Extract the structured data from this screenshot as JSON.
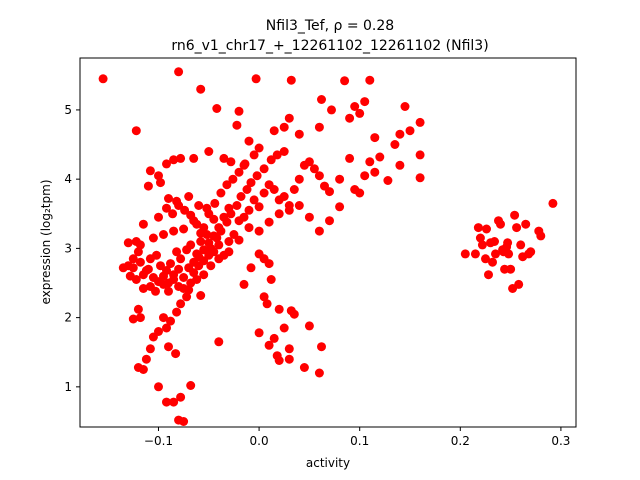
{
  "chart_data": {
    "type": "scatter",
    "title": "Nfil3_Tef, ρ = 0.28",
    "subtitle": "rn6_v1_chr17_+_12261102_12261102 (Nfil3)",
    "xlabel": "activity",
    "ylabel": "expression (log₂tpm)",
    "xlim": [
      -0.178,
      0.315
    ],
    "ylim": [
      0.42,
      5.75
    ],
    "xticks": [
      -0.1,
      0.0,
      0.1,
      0.2,
      0.3
    ],
    "xtick_labels": [
      "−0.1",
      "0.0",
      "0.1",
      "0.2",
      "0.3"
    ],
    "yticks": [
      1,
      2,
      3,
      4,
      5
    ],
    "ytick_labels": [
      "1",
      "2",
      "3",
      "4",
      "5"
    ],
    "grid": false,
    "marker_color": "#ff0000",
    "points": [
      [
        -0.155,
        5.45
      ],
      [
        -0.122,
        4.7
      ],
      [
        -0.08,
        5.55
      ],
      [
        -0.058,
        5.3
      ],
      [
        -0.042,
        5.02
      ],
      [
        -0.02,
        4.98
      ],
      [
        -0.022,
        4.78
      ],
      [
        -0.003,
        5.45
      ],
      [
        0.032,
        5.43
      ],
      [
        0.062,
        5.15
      ],
      [
        0.085,
        5.42
      ],
      [
        0.11,
        5.43
      ],
      [
        0.095,
        5.05
      ],
      [
        0.072,
        5.0
      ],
      [
        0.145,
        5.05
      ],
      [
        0.16,
        4.82
      ],
      [
        0.105,
        5.12
      ],
      [
        0.1,
        4.95
      ],
      [
        0.115,
        4.6
      ],
      [
        0.15,
        4.7
      ],
      [
        0.14,
        4.65
      ],
      [
        0.135,
        4.5
      ],
      [
        0.09,
        4.88
      ],
      [
        0.06,
        4.75
      ],
      [
        0.04,
        4.65
      ],
      [
        0.025,
        4.75
      ],
      [
        0.03,
        4.88
      ],
      [
        0.015,
        4.7
      ],
      [
        -0.01,
        4.55
      ],
      [
        0.0,
        4.45
      ],
      [
        -0.005,
        4.35
      ],
      [
        -0.015,
        4.2
      ],
      [
        -0.028,
        4.25
      ],
      [
        -0.035,
        4.3
      ],
      [
        -0.05,
        4.4
      ],
      [
        -0.065,
        4.3
      ],
      [
        -0.078,
        4.3
      ],
      [
        -0.085,
        4.28
      ],
      [
        -0.092,
        4.22
      ],
      [
        -0.1,
        4.05
      ],
      [
        -0.108,
        4.12
      ],
      [
        -0.11,
        3.9
      ],
      [
        -0.098,
        3.95
      ],
      [
        -0.09,
        3.72
      ],
      [
        -0.082,
        3.68
      ],
      [
        -0.07,
        3.75
      ],
      [
        -0.06,
        3.62
      ],
      [
        -0.052,
        3.58
      ],
      [
        -0.045,
        3.42
      ],
      [
        -0.055,
        3.3
      ],
      [
        -0.065,
        3.4
      ],
      [
        -0.075,
        3.28
      ],
      [
        -0.085,
        3.25
      ],
      [
        -0.095,
        3.2
      ],
      [
        -0.105,
        3.15
      ],
      [
        -0.115,
        3.35
      ],
      [
        -0.118,
        3.05
      ],
      [
        -0.12,
        2.95
      ],
      [
        -0.125,
        2.85
      ],
      [
        -0.13,
        2.75
      ],
      [
        -0.128,
        2.6
      ],
      [
        -0.122,
        2.55
      ],
      [
        -0.115,
        2.62
      ],
      [
        -0.11,
        2.7
      ],
      [
        -0.105,
        2.58
      ],
      [
        -0.1,
        2.52
      ],
      [
        -0.095,
        2.48
      ],
      [
        -0.09,
        2.5
      ],
      [
        -0.085,
        2.55
      ],
      [
        -0.08,
        2.45
      ],
      [
        -0.075,
        2.42
      ],
      [
        -0.07,
        2.4
      ],
      [
        -0.065,
        2.65
      ],
      [
        -0.06,
        2.75
      ],
      [
        -0.055,
        2.82
      ],
      [
        -0.05,
        2.9
      ],
      [
        -0.045,
        2.95
      ],
      [
        -0.04,
        3.05
      ],
      [
        -0.035,
        2.9
      ],
      [
        -0.03,
        3.1
      ],
      [
        -0.025,
        3.2
      ],
      [
        -0.02,
        3.4
      ],
      [
        -0.015,
        3.45
      ],
      [
        -0.01,
        3.55
      ],
      [
        -0.005,
        3.7
      ],
      [
        0.0,
        3.6
      ],
      [
        0.005,
        3.8
      ],
      [
        0.01,
        3.92
      ],
      [
        0.015,
        3.85
      ],
      [
        0.02,
        3.7
      ],
      [
        0.025,
        3.75
      ],
      [
        0.03,
        3.62
      ],
      [
        0.035,
        3.85
      ],
      [
        0.04,
        4.0
      ],
      [
        0.045,
        4.2
      ],
      [
        0.05,
        4.25
      ],
      [
        0.055,
        4.15
      ],
      [
        0.06,
        4.05
      ],
      [
        0.065,
        3.9
      ],
      [
        0.07,
        3.82
      ],
      [
        0.08,
        4.0
      ],
      [
        0.09,
        4.3
      ],
      [
        0.095,
        3.85
      ],
      [
        0.1,
        3.8
      ],
      [
        0.105,
        4.05
      ],
      [
        0.11,
        4.25
      ],
      [
        0.115,
        4.1
      ],
      [
        0.12,
        4.32
      ],
      [
        0.128,
        3.98
      ],
      [
        0.14,
        4.2
      ],
      [
        0.16,
        4.35
      ],
      [
        0.16,
        4.02
      ],
      [
        0.08,
        3.6
      ],
      [
        0.07,
        3.4
      ],
      [
        0.06,
        3.25
      ],
      [
        0.05,
        3.45
      ],
      [
        0.04,
        3.62
      ],
      [
        0.03,
        3.55
      ],
      [
        0.02,
        3.5
      ],
      [
        0.01,
        3.38
      ],
      [
        0.0,
        3.25
      ],
      [
        -0.01,
        3.3
      ],
      [
        -0.02,
        3.12
      ],
      [
        -0.03,
        2.95
      ],
      [
        -0.04,
        2.85
      ],
      [
        -0.048,
        2.75
      ],
      [
        -0.055,
        2.62
      ],
      [
        -0.062,
        2.55
      ],
      [
        -0.068,
        2.5
      ],
      [
        -0.072,
        2.3
      ],
      [
        -0.078,
        2.2
      ],
      [
        -0.082,
        2.08
      ],
      [
        -0.088,
        1.95
      ],
      [
        -0.092,
        1.85
      ],
      [
        -0.095,
        2.0
      ],
      [
        -0.1,
        1.8
      ],
      [
        -0.105,
        1.72
      ],
      [
        -0.108,
        1.55
      ],
      [
        -0.112,
        1.4
      ],
      [
        -0.118,
        2.0
      ],
      [
        -0.12,
        2.12
      ],
      [
        -0.125,
        1.98
      ],
      [
        -0.12,
        1.28
      ],
      [
        -0.115,
        1.25
      ],
      [
        -0.1,
        1.0
      ],
      [
        -0.092,
        0.78
      ],
      [
        -0.085,
        0.78
      ],
      [
        -0.08,
        0.52
      ],
      [
        -0.075,
        0.5
      ],
      [
        -0.078,
        0.85
      ],
      [
        -0.068,
        1.02
      ],
      [
        -0.083,
        1.48
      ],
      [
        -0.09,
        1.58
      ],
      [
        -0.058,
        2.32
      ],
      [
        -0.04,
        1.65
      ],
      [
        -0.015,
        2.48
      ],
      [
        -0.008,
        2.72
      ],
      [
        0.0,
        2.92
      ],
      [
        0.005,
        2.85
      ],
      [
        0.01,
        2.78
      ],
      [
        0.012,
        2.55
      ],
      [
        0.008,
        2.2
      ],
      [
        0.005,
        2.3
      ],
      [
        0.0,
        1.78
      ],
      [
        0.01,
        1.6
      ],
      [
        0.015,
        1.7
      ],
      [
        0.018,
        1.45
      ],
      [
        0.02,
        2.12
      ],
      [
        0.025,
        1.85
      ],
      [
        0.03,
        1.55
      ],
      [
        0.032,
        2.1
      ],
      [
        0.035,
        2.05
      ],
      [
        0.02,
        1.38
      ],
      [
        0.03,
        1.4
      ],
      [
        0.045,
        1.28
      ],
      [
        0.05,
        1.88
      ],
      [
        0.06,
        1.2
      ],
      [
        0.062,
        1.58
      ],
      [
        -0.125,
        2.72
      ],
      [
        -0.118,
        2.8
      ],
      [
        -0.112,
        2.68
      ],
      [
        -0.108,
        2.85
      ],
      [
        -0.102,
        2.9
      ],
      [
        -0.098,
        2.75
      ],
      [
        -0.092,
        2.68
      ],
      [
        -0.088,
        2.78
      ],
      [
        -0.082,
        2.95
      ],
      [
        -0.078,
        2.85
      ],
      [
        -0.072,
        2.98
      ],
      [
        -0.068,
        3.05
      ],
      [
        -0.062,
        2.92
      ],
      [
        -0.058,
        3.1
      ],
      [
        -0.052,
        3.2
      ],
      [
        -0.048,
        3.0
      ],
      [
        -0.042,
        3.15
      ],
      [
        -0.038,
        3.25
      ],
      [
        -0.032,
        3.38
      ],
      [
        -0.028,
        3.5
      ],
      [
        -0.022,
        3.62
      ],
      [
        -0.018,
        3.75
      ],
      [
        -0.012,
        3.85
      ],
      [
        -0.008,
        3.95
      ],
      [
        -0.002,
        4.05
      ],
      [
        0.005,
        4.15
      ],
      [
        0.012,
        4.28
      ],
      [
        0.018,
        4.35
      ],
      [
        0.025,
        4.4
      ],
      [
        -0.095,
        2.6
      ],
      [
        -0.09,
        2.38
      ],
      [
        -0.085,
        2.62
      ],
      [
        -0.08,
        2.7
      ],
      [
        -0.075,
        2.58
      ],
      [
        -0.07,
        2.72
      ],
      [
        -0.065,
        2.8
      ],
      [
        -0.06,
        2.88
      ],
      [
        -0.055,
        2.98
      ],
      [
        -0.05,
        3.08
      ],
      [
        -0.045,
        3.18
      ],
      [
        -0.04,
        3.3
      ],
      [
        -0.035,
        3.45
      ],
      [
        -0.03,
        3.58
      ],
      [
        -0.1,
        3.45
      ],
      [
        -0.092,
        3.58
      ],
      [
        -0.086,
        3.5
      ],
      [
        -0.08,
        3.62
      ],
      [
        -0.074,
        3.55
      ],
      [
        -0.068,
        3.48
      ],
      [
        -0.062,
        3.35
      ],
      [
        -0.058,
        3.22
      ],
      [
        -0.05,
        3.5
      ],
      [
        -0.044,
        3.65
      ],
      [
        -0.038,
        3.8
      ],
      [
        -0.032,
        3.92
      ],
      [
        -0.026,
        4.0
      ],
      [
        -0.02,
        4.1
      ],
      [
        -0.014,
        4.22
      ],
      [
        0.205,
        2.92
      ],
      [
        0.215,
        2.92
      ],
      [
        0.218,
        3.3
      ],
      [
        0.222,
        3.05
      ],
      [
        0.225,
        2.85
      ],
      [
        0.228,
        2.62
      ],
      [
        0.23,
        3.08
      ],
      [
        0.232,
        2.8
      ],
      [
        0.235,
        2.92
      ],
      [
        0.238,
        3.4
      ],
      [
        0.24,
        3.35
      ],
      [
        0.242,
        2.98
      ],
      [
        0.244,
        2.7
      ],
      [
        0.246,
        3.02
      ],
      [
        0.248,
        2.92
      ],
      [
        0.25,
        2.7
      ],
      [
        0.252,
        2.42
      ],
      [
        0.254,
        3.48
      ],
      [
        0.256,
        3.3
      ],
      [
        0.258,
        2.48
      ],
      [
        0.26,
        3.05
      ],
      [
        0.262,
        2.88
      ],
      [
        0.265,
        3.35
      ],
      [
        0.268,
        2.92
      ],
      [
        0.27,
        2.95
      ],
      [
        0.278,
        3.25
      ],
      [
        0.28,
        3.18
      ],
      [
        0.292,
        3.65
      ],
      [
        0.22,
        3.15
      ],
      [
        0.226,
        3.28
      ],
      [
        0.234,
        3.1
      ],
      [
        0.243,
        2.95
      ],
      [
        0.247,
        3.08
      ],
      [
        -0.135,
        2.72
      ],
      [
        -0.13,
        3.08
      ],
      [
        -0.122,
        3.1
      ],
      [
        -0.115,
        2.42
      ],
      [
        -0.108,
        2.45
      ],
      [
        -0.103,
        2.38
      ]
    ]
  }
}
